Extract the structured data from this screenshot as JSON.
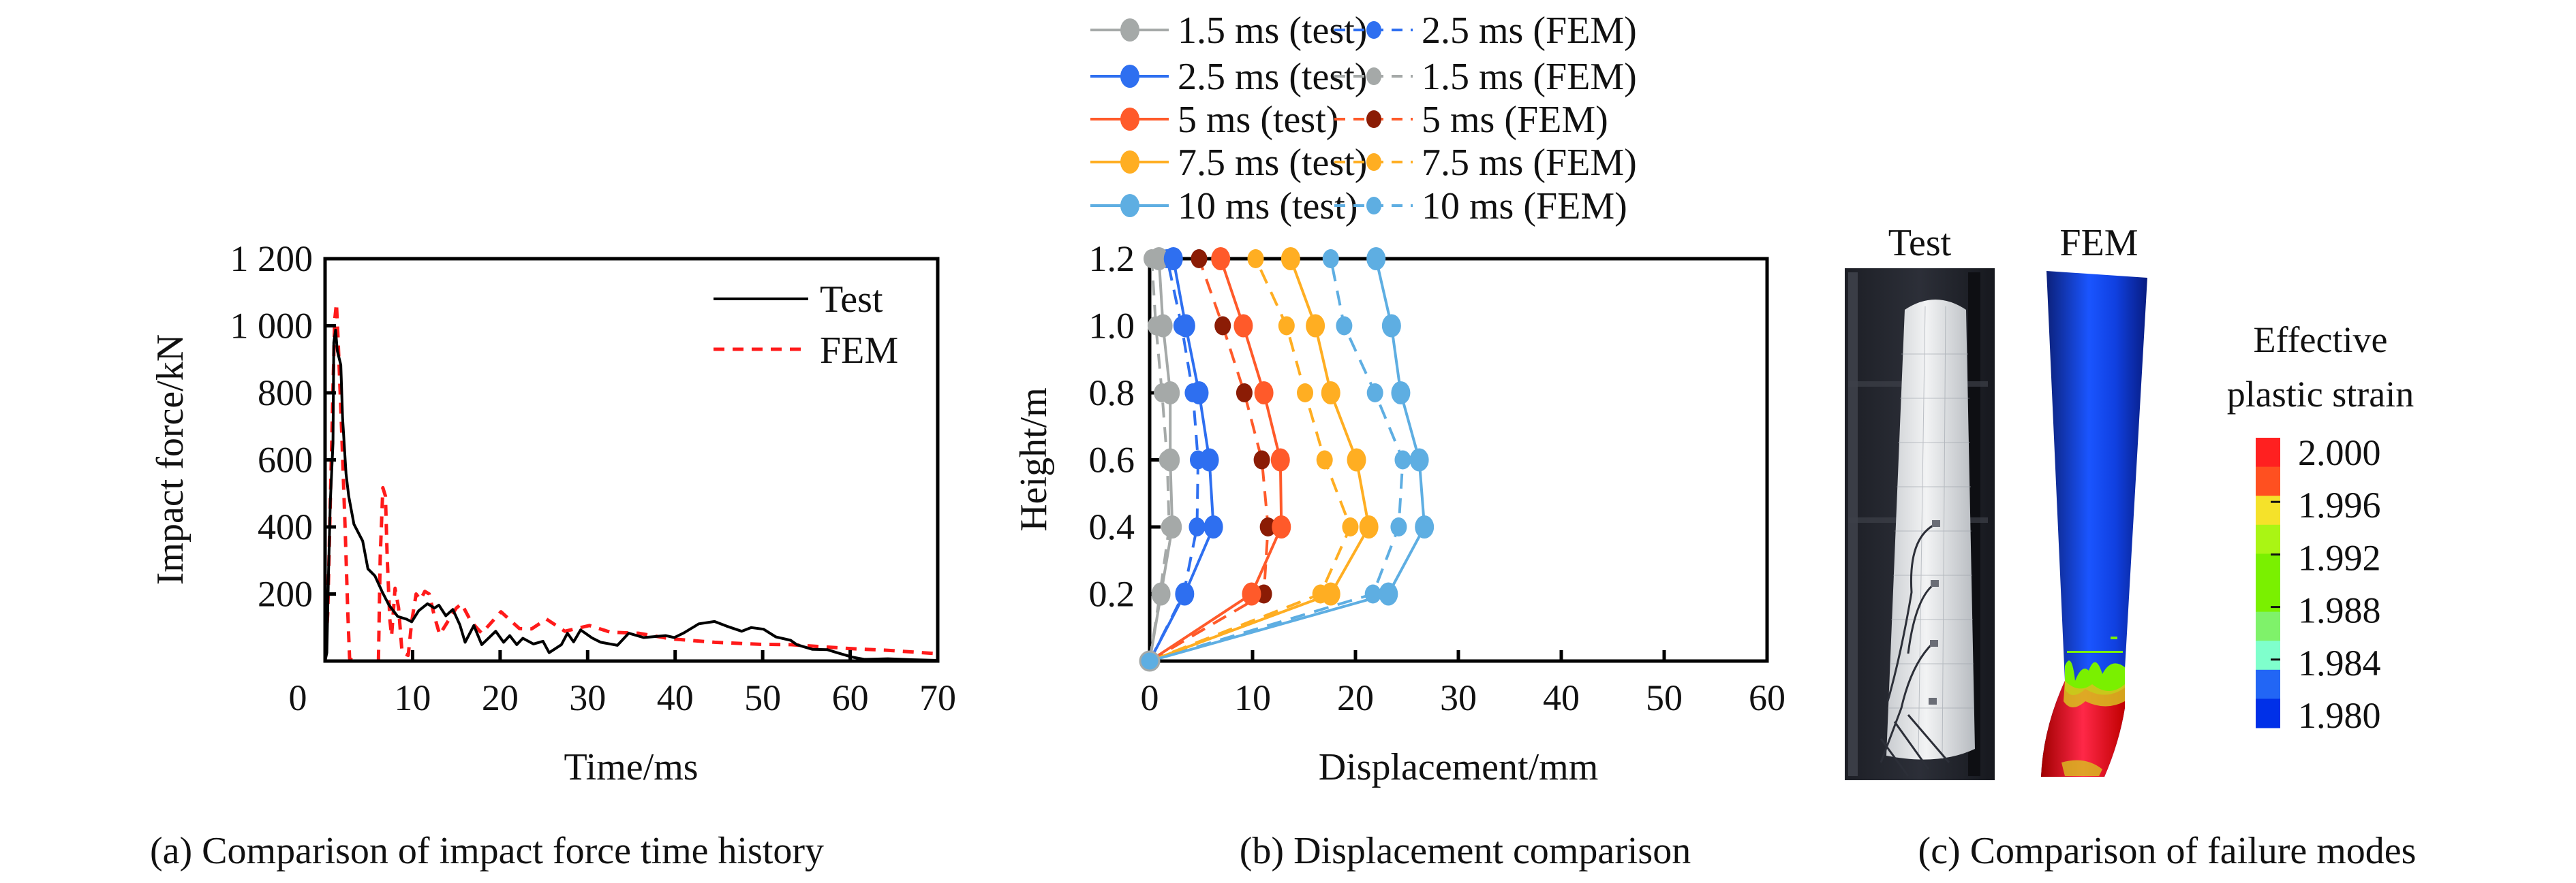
{
  "chart_data": [
    {
      "id": "a",
      "type": "line",
      "caption": "(a) Comparison of impact force time history",
      "xlabel": "Time/ms",
      "ylabel": "Impact force/kN",
      "xlim": [
        0,
        70
      ],
      "ylim": [
        0,
        1200
      ],
      "xticks": [
        0,
        10,
        20,
        30,
        40,
        50,
        60,
        70
      ],
      "xtick_labels": [
        "0",
        "10",
        "20",
        "30",
        "40",
        "50",
        "60",
        "70"
      ],
      "yticks": [
        200,
        400,
        600,
        800,
        1000,
        1200
      ],
      "ytick_labels": [
        "200",
        "400",
        "600",
        "800",
        "1 000",
        "1 200"
      ],
      "grid": false,
      "legend_position": "top-right",
      "series": [
        {
          "name": "Test",
          "style": "solid",
          "color": "#000000",
          "x": [
            0,
            0.2,
            0.4,
            0.6,
            0.9,
            1.0,
            1.2,
            1.4,
            1.8,
            2.0,
            2.4,
            2.7,
            3.3,
            4.3,
            4.9,
            5.7,
            6.5,
            7.3,
            8.3,
            9.3,
            9.9,
            10.7,
            11.7,
            12.5,
            13.0,
            13.8,
            14.6,
            15.4,
            16.0,
            17.0,
            17.9,
            19.5,
            20.4,
            21.1,
            21.9,
            22.6,
            23.8,
            24.9,
            25.6,
            27.0,
            27.7,
            28.4,
            29.2,
            30.5,
            31.5,
            33.4,
            34.7,
            36.4,
            38.9,
            39.9,
            41.0,
            42.7,
            44.5,
            45.9,
            47.6,
            48.7,
            50.1,
            51.5,
            53.2,
            53.9,
            55.7,
            57.4,
            58.5,
            60.2,
            61.6,
            64.3,
            67.0,
            70.0
          ],
          "y": [
            0,
            25,
            267,
            475,
            650,
            950,
            987,
            925,
            883,
            725,
            558,
            492,
            408,
            358,
            275,
            254,
            208,
            167,
            133,
            125,
            117,
            150,
            171,
            158,
            167,
            135,
            154,
            108,
            56,
            106,
            49,
            89,
            56,
            76,
            49,
            68,
            51,
            59,
            25,
            49,
            83,
            57,
            93,
            69,
            56,
            47,
            83,
            70,
            76,
            70,
            84,
            111,
            118,
            104,
            89,
            100,
            95,
            72,
            62,
            49,
            35,
            34,
            25,
            12,
            5,
            7,
            4,
            2
          ]
        },
        {
          "name": "FEM",
          "style": "dashed",
          "color": "#ff1a1a",
          "x": [
            0,
            0.3,
            0.6,
            0.9,
            1.1,
            1.3,
            1.5,
            1.9,
            2.3,
            2.6,
            2.8,
            3.2,
            5.8,
            6.1,
            6.3,
            6.6,
            6.9,
            7.1,
            7.4,
            7.6,
            8.0,
            8.4,
            8.8,
            9.5,
            9.9,
            10.4,
            10.9,
            11.4,
            11.9,
            12.5,
            13.1,
            14.0,
            15.0,
            15.6,
            16.7,
            17.9,
            20.1,
            22.2,
            23.6,
            25.3,
            27.4,
            30.2,
            32.6,
            35.8,
            39.6,
            44.5,
            49.7,
            53.2,
            60.2,
            64.3,
            70.0
          ],
          "y": [
            0,
            142,
            475,
            808,
            1017,
            1067,
            950,
            683,
            392,
            142,
            8,
            0,
            0,
            0,
            308,
            517,
            492,
            308,
            125,
            75,
            217,
            158,
            25,
            17,
            117,
            200,
            183,
            208,
            200,
            133,
            79,
            117,
            158,
            171,
            117,
            83,
            147,
            97,
            96,
            125,
            89,
            106,
            86,
            83,
            66,
            56,
            50,
            49,
            37,
            32,
            22
          ]
        }
      ]
    },
    {
      "id": "b",
      "type": "line",
      "caption": "(b) Displacement comparison",
      "xlabel": "Displacement/mm",
      "ylabel": "Height/m",
      "xlim": [
        0,
        60
      ],
      "ylim": [
        0,
        1.2
      ],
      "xticks": [
        0,
        10,
        20,
        30,
        40,
        50,
        60
      ],
      "xtick_labels": [
        "0",
        "10",
        "20",
        "30",
        "40",
        "50",
        "60"
      ],
      "yticks": [
        0.2,
        0.4,
        0.6,
        0.8,
        1.0,
        1.2
      ],
      "ytick_labels": [
        "0.2",
        "0.4",
        "0.6",
        "0.8",
        "1.0",
        "1.2"
      ],
      "grid": false,
      "legend_position": "top (above plot, two columns)",
      "heights": [
        0,
        0.2,
        0.4,
        0.6,
        0.8,
        1.0,
        1.2
      ],
      "series": [
        {
          "name": "1.5 ms (test)",
          "style": "solid",
          "line_color": "#a5a9a8",
          "marker_color": "#a5a9a8",
          "x": [
            0,
            1.1,
            2.2,
            2.0,
            2.0,
            1.3,
            0.9
          ]
        },
        {
          "name": "2.5 ms (test)",
          "style": "solid",
          "line_color": "#2e6ff0",
          "marker_color": "#2e6ff0",
          "x": [
            0,
            3.4,
            6.2,
            5.8,
            4.8,
            3.5,
            2.3
          ]
        },
        {
          "name": "5 ms (test)",
          "style": "solid",
          "line_color": "#ff5a2a",
          "marker_color": "#ff5a2a",
          "x": [
            0,
            9.9,
            12.8,
            12.7,
            11.1,
            9.1,
            6.9
          ]
        },
        {
          "name": "7.5 ms (test)",
          "style": "solid",
          "line_color": "#ffae22",
          "marker_color": "#ffae22",
          "x": [
            0,
            17.6,
            21.3,
            20.1,
            17.6,
            16.1,
            13.7
          ]
        },
        {
          "name": "10 ms (test)",
          "style": "solid",
          "line_color": "#5eaee2",
          "marker_color": "#5eaee2",
          "x": [
            0,
            23.2,
            26.7,
            26.2,
            24.4,
            23.5,
            22.0
          ]
        },
        {
          "name": "2.5 ms (FEM)",
          "style": "dashed",
          "line_color": "#2e6ff0",
          "marker_color": "#2e6ff0",
          "x": [
            0,
            3.3,
            4.6,
            4.7,
            4.2,
            3.1,
            1.7
          ]
        },
        {
          "name": "1.5 ms (FEM)",
          "style": "dashed",
          "line_color": "#a5a9a8",
          "marker_color": "#a5a9a8",
          "x": [
            0,
            1.0,
            1.9,
            1.7,
            1.2,
            0.6,
            0.2
          ]
        },
        {
          "name": "5 ms (FEM)",
          "style": "dashed",
          "line_color": "#ff5a2a",
          "marker_color": "#8b1c05",
          "x": [
            0,
            11.1,
            11.5,
            10.9,
            9.2,
            7.1,
            4.8
          ]
        },
        {
          "name": "7.5 ms (FEM)",
          "style": "dashed",
          "line_color": "#ffae22",
          "marker_color": "#ffae22",
          "x": [
            0,
            16.6,
            19.5,
            17.0,
            15.1,
            13.3,
            10.3
          ]
        },
        {
          "name": "10 ms (FEM)",
          "style": "dashed",
          "line_color": "#5eaee2",
          "marker_color": "#5eaee2",
          "x": [
            0,
            21.7,
            24.2,
            24.6,
            21.9,
            18.9,
            17.6
          ]
        }
      ]
    },
    {
      "id": "c",
      "type": "heatmap",
      "caption": "(c) Comparison of failure modes",
      "image_labels": [
        "Test",
        "FEM"
      ],
      "colorbar": {
        "title_line1": "Effective",
        "title_line2": "plastic strain",
        "tick_labels": [
          "2.000",
          "1.996",
          "1.992",
          "1.988",
          "1.984",
          "1.980"
        ],
        "colors_top_to_bottom": [
          "#ff2020",
          "#ff5020",
          "#f5e22a",
          "#aaf514",
          "#7af000",
          "#7af000",
          "#7ff26a",
          "#7fffcc",
          "#2266f5",
          "#0030e8"
        ]
      }
    }
  ]
}
